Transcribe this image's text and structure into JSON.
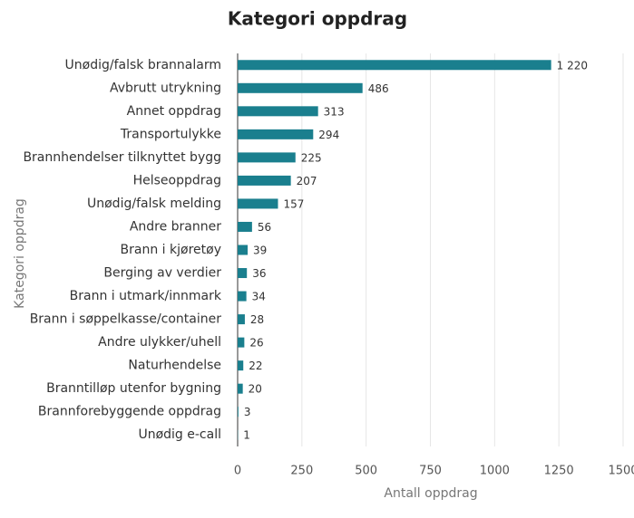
{
  "chart_data": {
    "type": "bar",
    "orientation": "horizontal",
    "title": "Kategori oppdrag",
    "x_label": "Antall oppdrag",
    "y_label": "Kategori oppdrag",
    "categories": [
      "Unødig/falsk brannalarm",
      "Avbrutt utrykning",
      "Annet oppdrag",
      "Transportulykke",
      "Brannhendelser tilknyttet bygg",
      "Helseoppdrag",
      "Unødig/falsk melding",
      "Andre branner",
      "Brann i kjøretøy",
      "Berging av verdier",
      "Brann i utmark/innmark",
      "Brann i søppelkasse/container",
      "Andre ulykker/uhell",
      "Naturhendelse",
      "Branntilløp utenfor bygning",
      "Brannforebyggende oppdrag",
      "Unødig e-call"
    ],
    "values": [
      1220,
      486,
      313,
      294,
      225,
      207,
      157,
      56,
      39,
      36,
      34,
      28,
      26,
      22,
      20,
      3,
      1
    ],
    "value_labels": [
      "1 220",
      "486",
      "313",
      "294",
      "225",
      "207",
      "157",
      "56",
      "39",
      "36",
      "34",
      "28",
      "26",
      "22",
      "20",
      "3",
      "1"
    ],
    "color": "#1a7f8e",
    "xlim": [
      0,
      1500
    ],
    "xticks": [
      0,
      250,
      500,
      750,
      1000,
      1250,
      1500
    ],
    "grid": true
  }
}
